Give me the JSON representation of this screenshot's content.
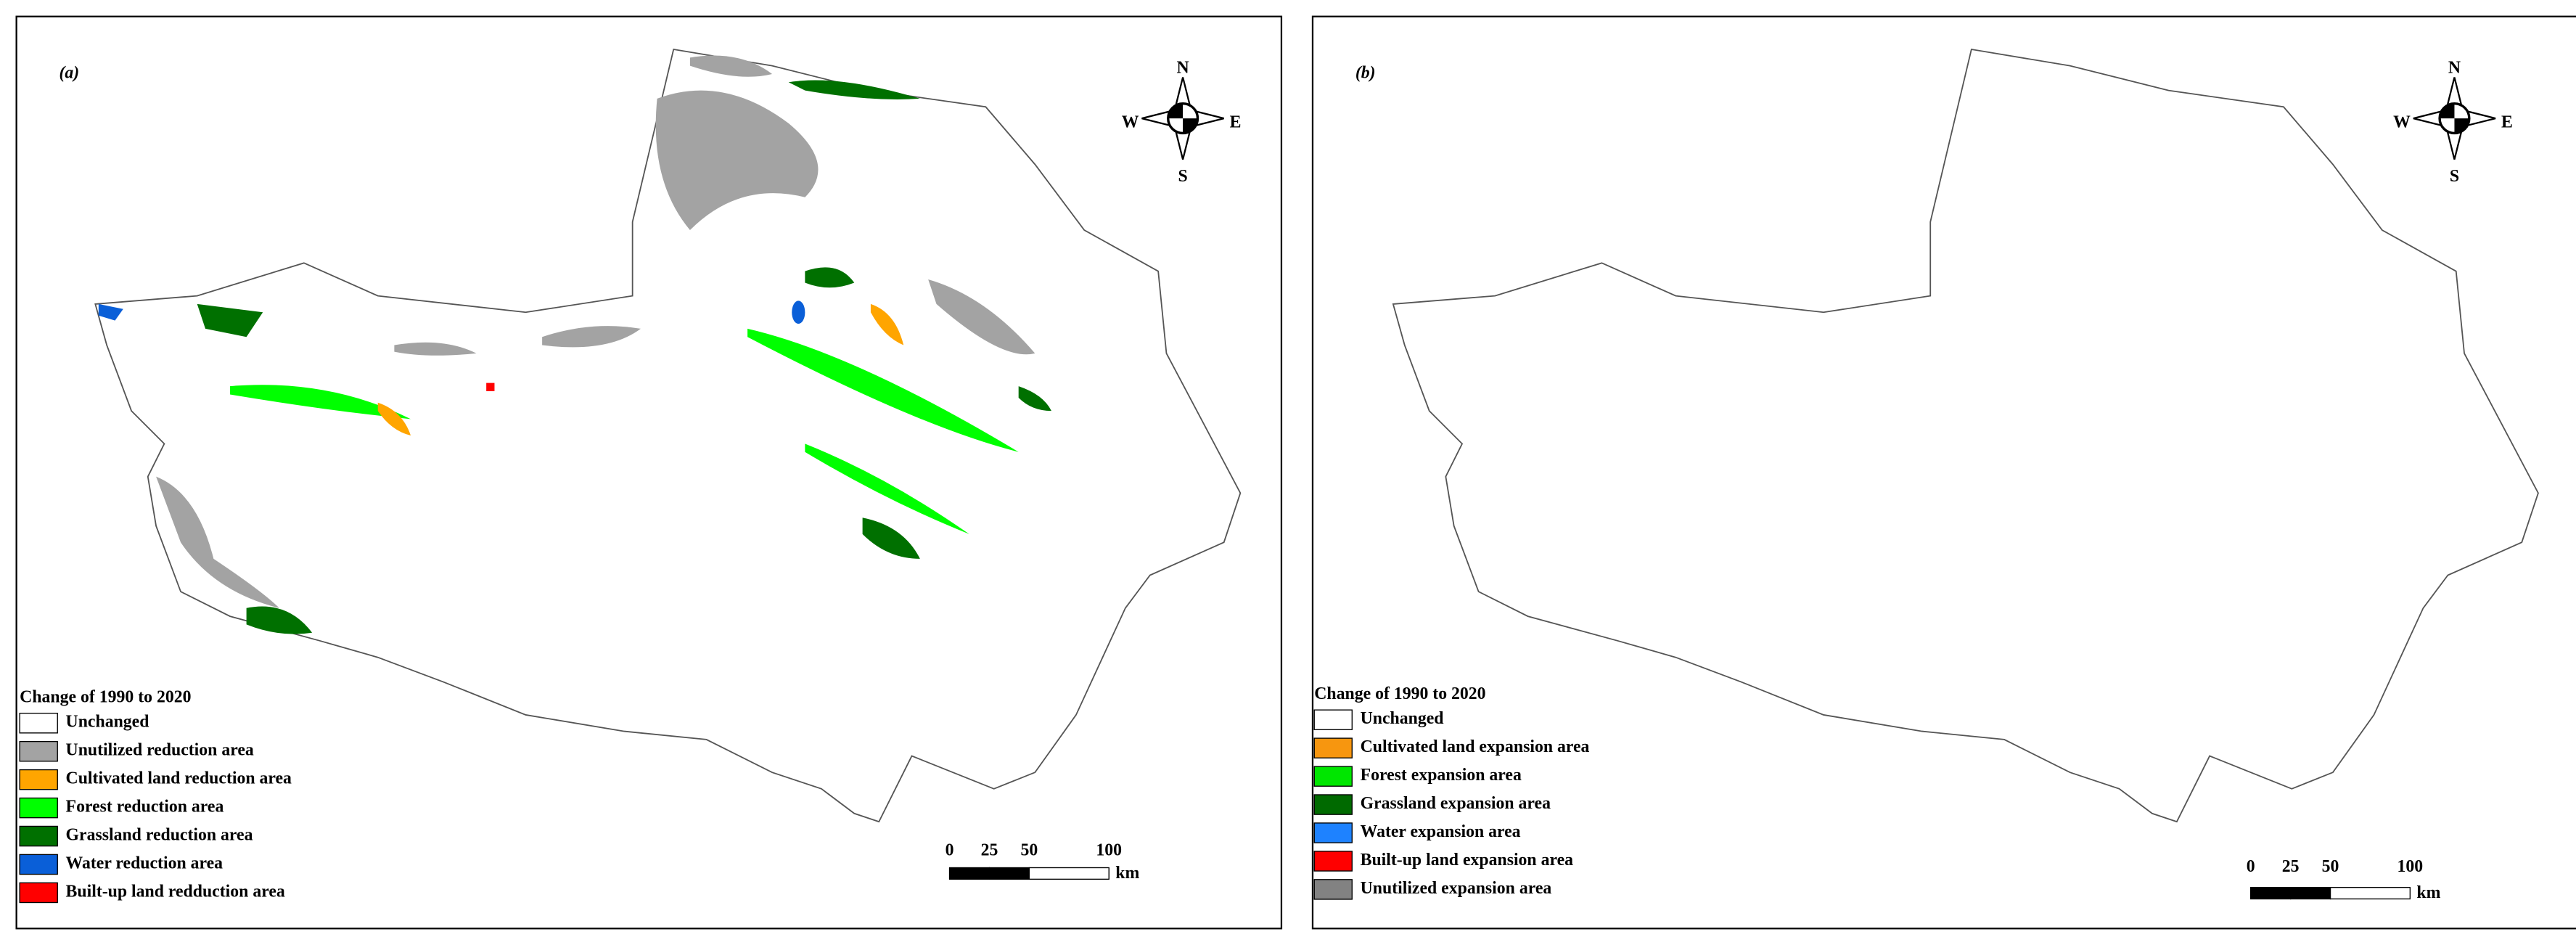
{
  "panels": [
    {
      "label": "(a)",
      "compass": {
        "n": "N",
        "w": "W",
        "e": "E",
        "s": "S"
      },
      "legend": {
        "title": "Change of 1990 to 2020",
        "items": [
          {
            "label": "Unchanged",
            "color": "#ffffff"
          },
          {
            "label": "Unutilized reduction area",
            "color": "#a3a3a3"
          },
          {
            "label": "Cultivated land reduction area",
            "color": "#ffa500"
          },
          {
            "label": "Forest reduction area",
            "color": "#00ff00"
          },
          {
            "label": "Grassland reduction area",
            "color": "#007000"
          },
          {
            "label": "Water reduction area",
            "color": "#0a5fd8"
          },
          {
            "label": "Built-up land redduction area",
            "color": "#ff0000"
          }
        ]
      },
      "scale_bar": {
        "ticks": [
          0,
          25,
          50,
          100
        ],
        "unit": "km"
      }
    },
    {
      "label": "(b)",
      "compass": {
        "n": "N",
        "w": "W",
        "e": "E",
        "s": "S"
      },
      "legend": {
        "title": "Change of 1990 to 2020",
        "items": [
          {
            "label": "Unchanged",
            "color": "#ffffff"
          },
          {
            "label": "Cultivated land expansion area",
            "color": "#f7960f"
          },
          {
            "label": "Forest expansion area",
            "color": "#00e600"
          },
          {
            "label": "Grassland expansion area",
            "color": "#006a00"
          },
          {
            "label": "Water expansion area",
            "color": "#1e82ff"
          },
          {
            "label": "Built-up land expansion area",
            "color": "#ff0000"
          },
          {
            "label": "Unutilized expansion area",
            "color": "#828282"
          }
        ]
      },
      "scale_bar": {
        "ticks": [
          0,
          25,
          50,
          100
        ],
        "unit": "km"
      }
    }
  ]
}
